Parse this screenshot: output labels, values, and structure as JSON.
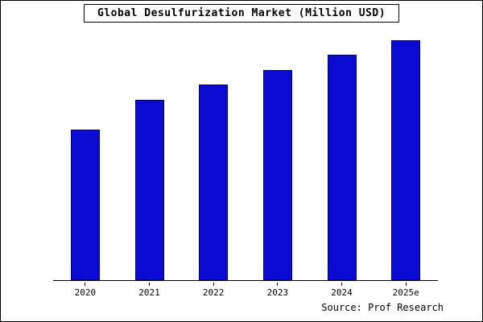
{
  "chart_data": {
    "type": "bar",
    "title": "Global Desulfurization Market (Million USD)",
    "categories": [
      "2020",
      "2021",
      "2022",
      "2023",
      "2024",
      "2025e"
    ],
    "values": [
      62.7,
      75.0,
      81.7,
      87.7,
      94.0,
      100.0
    ],
    "xlabel": "",
    "ylabel": "",
    "ylim": [
      0,
      103
    ],
    "y_axis_ticks_visible": false,
    "grid": false,
    "legend_position": "none",
    "bar_color": "#0b0bd2",
    "bar_border_color": "#000066",
    "note": "values are relative units estimated from bar heights; no y-axis scale shown in source image"
  },
  "footer": {
    "source": "Source: Prof Research"
  }
}
